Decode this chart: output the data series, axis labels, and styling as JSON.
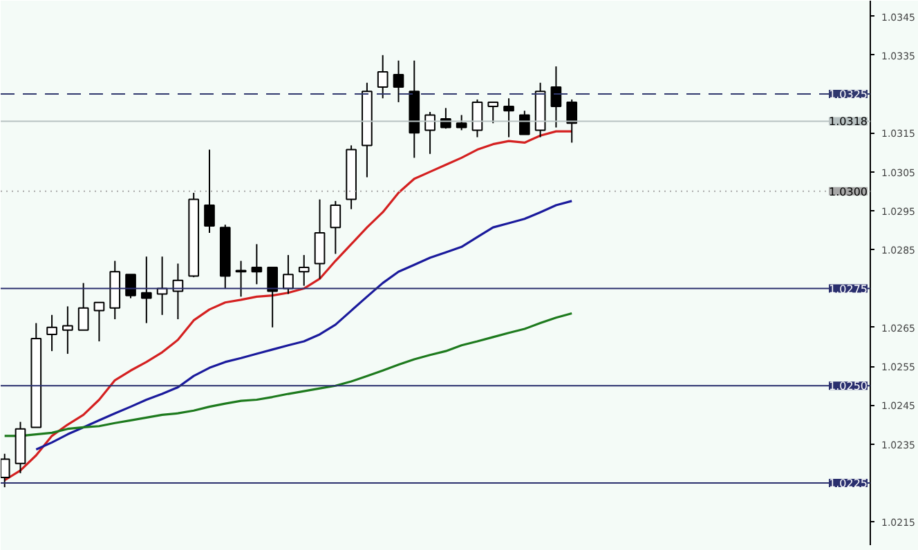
{
  "chart_data": {
    "type": "candlestick",
    "categories": [
      null,
      null,
      null,
      null,
      null,
      null,
      null,
      null,
      null,
      null,
      null,
      null,
      null,
      null,
      null,
      null,
      null,
      null,
      null,
      null,
      null,
      null,
      null,
      null,
      null,
      null,
      null,
      null,
      null,
      null,
      null,
      null,
      null,
      null,
      null,
      null,
      null
    ],
    "ohlc": [
      [
        1.02264,
        1.02325,
        1.02239,
        1.02311
      ],
      [
        1.023,
        1.02407,
        1.02275,
        1.02389
      ],
      [
        1.02393,
        1.02661,
        1.02393,
        1.02621
      ],
      [
        1.02632,
        1.02682,
        1.02589,
        1.0265
      ],
      [
        1.02643,
        1.02704,
        1.02582,
        1.02654
      ],
      [
        1.02643,
        1.02764,
        1.02643,
        1.027
      ],
      [
        1.02693,
        1.02714,
        1.02614,
        1.02714
      ],
      [
        1.027,
        1.02821,
        1.02671,
        1.02793
      ],
      [
        1.02786,
        1.02786,
        1.02725,
        1.02732
      ],
      [
        1.02739,
        1.02832,
        1.02661,
        1.02725
      ],
      [
        1.02736,
        1.02832,
        1.02682,
        1.0275
      ],
      [
        1.02743,
        1.02814,
        1.02671,
        1.02771
      ],
      [
        1.02782,
        1.02996,
        1.02779,
        1.02979
      ],
      [
        1.02964,
        1.03107,
        1.02893,
        1.02911
      ],
      [
        1.02907,
        1.02914,
        1.0275,
        1.02782
      ],
      [
        1.02793,
        1.02821,
        1.02729,
        1.02796
      ],
      [
        1.02804,
        1.02864,
        1.02761,
        1.02793
      ],
      [
        1.02804,
        1.02804,
        1.0265,
        1.02743
      ],
      [
        1.0275,
        1.02836,
        1.02736,
        1.02786
      ],
      [
        1.02793,
        1.02836,
        1.02757,
        1.02804
      ],
      [
        1.02814,
        1.02979,
        1.02775,
        1.02893
      ],
      [
        1.02907,
        1.02975,
        1.02839,
        1.02964
      ],
      [
        1.02979,
        1.03118,
        1.02954,
        1.03107
      ],
      [
        1.03118,
        1.03279,
        1.03036,
        1.03257
      ],
      [
        1.03268,
        1.0335,
        1.03239,
        1.03307
      ],
      [
        1.033,
        1.03336,
        1.03229,
        1.03268
      ],
      [
        1.03257,
        1.03336,
        1.03086,
        1.0315
      ],
      [
        1.03157,
        1.03204,
        1.03096,
        1.03196
      ],
      [
        1.03186,
        1.03214,
        1.03161,
        1.03164
      ],
      [
        1.03175,
        1.03196,
        1.03157,
        1.03164
      ],
      [
        1.03157,
        1.03236,
        1.03139,
        1.03229
      ],
      [
        1.03218,
        1.03229,
        1.03175,
        1.03229
      ],
      [
        1.03218,
        1.03239,
        1.03139,
        1.03207
      ],
      [
        1.03196,
        1.03207,
        1.03146,
        1.03146
      ],
      [
        1.03157,
        1.03279,
        1.03139,
        1.03257
      ],
      [
        1.03268,
        1.03321,
        1.03164,
        1.03218
      ],
      [
        1.03229,
        1.03236,
        1.03125,
        1.03175
      ]
    ],
    "series": [
      {
        "type": "line",
        "color": "#d42020",
        "values": [
          1.02257,
          1.02282,
          1.02321,
          1.02371,
          1.024,
          1.02425,
          1.02464,
          1.02514,
          1.02539,
          1.02561,
          1.02586,
          1.02618,
          1.02668,
          1.02696,
          1.02714,
          1.02721,
          1.02729,
          1.02732,
          1.02739,
          1.0275,
          1.02775,
          1.02821,
          1.02864,
          1.02907,
          1.02946,
          1.02996,
          1.03032,
          1.0305,
          1.03068,
          1.03086,
          1.03107,
          1.03121,
          1.03129,
          1.03125,
          1.03143,
          1.03154,
          1.03154
        ]
      },
      {
        "type": "line",
        "color": "#1a1a9c",
        "values": [
          null,
          null,
          1.02336,
          1.02354,
          1.02375,
          1.02393,
          1.02411,
          1.02429,
          1.02446,
          1.02464,
          1.02479,
          1.02496,
          1.02525,
          1.02546,
          1.02561,
          1.02571,
          1.02582,
          1.02593,
          1.02604,
          1.02614,
          1.02632,
          1.02657,
          1.02693,
          1.02729,
          1.02764,
          1.02793,
          1.02811,
          1.02829,
          1.02843,
          1.02857,
          1.02882,
          1.02907,
          1.02918,
          1.02929,
          1.02946,
          1.02964,
          1.02975
        ]
      },
      {
        "type": "line",
        "color": "#1d7a1d",
        "values": [
          1.02371,
          1.02371,
          1.02375,
          1.02379,
          1.02389,
          1.02393,
          1.02396,
          1.02404,
          1.02411,
          1.02418,
          1.02425,
          1.02429,
          1.02436,
          1.02446,
          1.02454,
          1.02461,
          1.02464,
          1.02471,
          1.02479,
          1.02486,
          1.02493,
          1.025,
          1.02511,
          1.02525,
          1.02539,
          1.02554,
          1.02568,
          1.02579,
          1.02589,
          1.02604,
          1.02614,
          1.02625,
          1.02636,
          1.02646,
          1.02661,
          1.02675,
          1.02686
        ]
      }
    ],
    "ylim": [
      1.0209,
      1.0349
    ],
    "yticks": [
      1.0345,
      1.0335,
      1.0315,
      1.0305,
      1.0295,
      1.0285,
      1.0265,
      1.0255,
      1.0245,
      1.0235,
      1.0215
    ],
    "ref_lines": [
      {
        "axis": "y",
        "value": 1.0325,
        "label": "1.0325",
        "color": "#30386e",
        "line_style": "dashed"
      },
      {
        "axis": "y",
        "value": 1.0318,
        "label": "1.0318",
        "color": "#b8c2c2",
        "line_style": "solid"
      },
      {
        "axis": "y",
        "value": 1.03,
        "label": "1.0300",
        "color": "#a8a8a8",
        "line_style": "dotted"
      },
      {
        "axis": "y",
        "value": 1.0275,
        "label": "1.0275",
        "color": "#2a2f6e",
        "line_style": "solid"
      },
      {
        "axis": "y",
        "value": 1.025,
        "label": "1.0250",
        "color": "#2a2f6e",
        "line_style": "solid"
      },
      {
        "axis": "y",
        "value": 1.0225,
        "label": "1.0225",
        "color": "#2a2f6e",
        "line_style": "solid"
      }
    ]
  }
}
